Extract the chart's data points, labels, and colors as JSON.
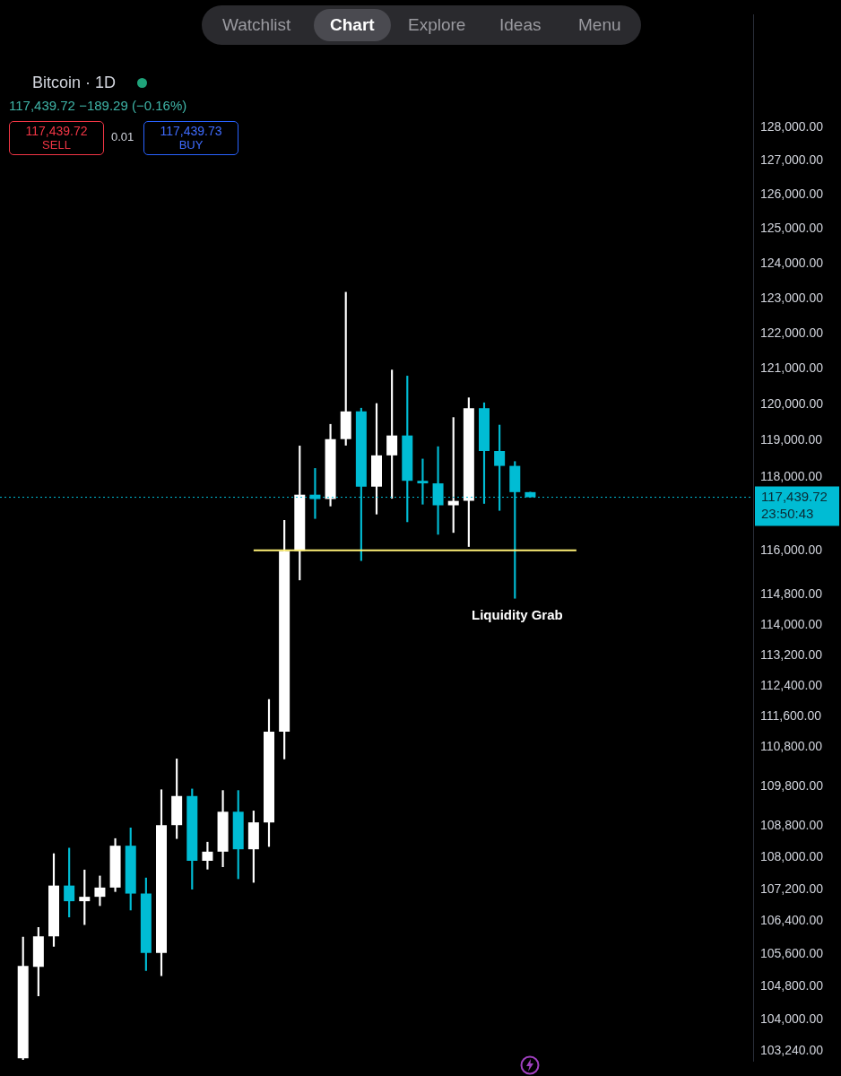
{
  "chart_data": {
    "type": "candlestick",
    "title": "Bitcoin · 1D",
    "subtitle": "117,439.72 −189.29 (−0.16%)",
    "categories": [
      null,
      null,
      null,
      null,
      null,
      null,
      null,
      null,
      null,
      null,
      null,
      null,
      null,
      null,
      null,
      null,
      null,
      null,
      null,
      null,
      null,
      null,
      null,
      null,
      null,
      null,
      null,
      null,
      null,
      null,
      null,
      null,
      null,
      null,
      null,
      null,
      null,
      null,
      null,
      null,
      null,
      null,
      null,
      null,
      null,
      null,
      null,
      null,
      null
    ],
    "ohlc": [
      null,
      [
        103060,
        106010,
        103030,
        105300
      ],
      [
        105280,
        106250,
        104570,
        106030
      ],
      [
        106030,
        108090,
        105780,
        107290
      ],
      [
        107290,
        108230,
        106510,
        106900
      ],
      [
        106900,
        107680,
        106320,
        107010
      ],
      [
        107010,
        107530,
        106790,
        107240
      ],
      [
        107240,
        108470,
        107140,
        108290
      ],
      [
        108290,
        108740,
        106680,
        107090
      ],
      [
        107090,
        107480,
        105190,
        105620
      ],
      [
        105620,
        109710,
        105060,
        108810
      ],
      [
        108810,
        110500,
        108470,
        109550
      ],
      [
        109550,
        109730,
        107200,
        107910
      ],
      [
        107910,
        108380,
        107700,
        108140
      ],
      [
        108140,
        109690,
        107760,
        109150
      ],
      [
        109150,
        109690,
        107460,
        108200
      ],
      [
        108200,
        109170,
        107370,
        108880
      ],
      [
        108880,
        112040,
        108270,
        111200
      ],
      [
        111200,
        116810,
        110500,
        115980
      ],
      [
        115980,
        118850,
        115200,
        117510
      ],
      [
        117510,
        118230,
        116860,
        117390
      ],
      [
        117390,
        119450,
        117200,
        119040
      ],
      [
        119040,
        123180,
        118870,
        119810
      ],
      [
        119810,
        119900,
        115720,
        117730
      ],
      [
        117730,
        120030,
        116980,
        118590
      ],
      [
        118590,
        120970,
        117410,
        119140
      ],
      [
        119140,
        120800,
        116770,
        117890
      ],
      [
        117890,
        118490,
        117250,
        117820
      ],
      [
        117820,
        118830,
        116430,
        117220
      ],
      [
        117220,
        119640,
        116480,
        117340
      ],
      [
        117340,
        120190,
        116100,
        119900
      ],
      [
        119900,
        120050,
        117270,
        118710
      ],
      [
        118710,
        119430,
        117080,
        118300
      ],
      [
        118300,
        118420,
        114710,
        117580
      ],
      [
        117580,
        117580,
        117439.72,
        117439.72
      ],
      null,
      null,
      null,
      null,
      null,
      null,
      null,
      null,
      null,
      null,
      null,
      null,
      null,
      null
    ],
    "colors": [
      null,
      "#ffffff",
      "#ffffff",
      "#ffffff",
      "#00bcd4",
      "#ffffff",
      "#ffffff",
      "#ffffff",
      "#00bcd4",
      "#00bcd4",
      "#ffffff",
      "#ffffff",
      "#00bcd4",
      "#ffffff",
      "#ffffff",
      "#00bcd4",
      "#ffffff",
      "#ffffff",
      "#ffffff",
      "#ffffff",
      "#00bcd4",
      "#ffffff",
      "#ffffff",
      "#00bcd4",
      "#ffffff",
      "#ffffff",
      "#00bcd4",
      "#00bcd4",
      "#00bcd4",
      "#ffffff",
      "#ffffff",
      "#00bcd4",
      "#00bcd4",
      "#00bcd4",
      "#00bcd4",
      null,
      null,
      null,
      null,
      null,
      null,
      null,
      null,
      null,
      null,
      null,
      null,
      null,
      null
    ],
    "series": [
      {
        "type": "line",
        "color": "#fff176",
        "values": [
          null,
          null,
          null,
          null,
          null,
          null,
          null,
          null,
          null,
          null,
          null,
          null,
          null,
          null,
          null,
          null,
          116000,
          116000,
          116000,
          116000,
          116000,
          116000,
          116000,
          116000,
          116000,
          116000,
          116000,
          116000,
          116000,
          116000,
          116000,
          116000,
          116000,
          116000,
          116000,
          116000,
          116000,
          116000,
          null,
          null,
          null,
          null,
          null,
          null,
          null,
          null,
          null,
          null,
          null
        ]
      }
    ],
    "log": true,
    "ylim": [
      102990,
      131400
    ],
    "yticks": [
      {
        "value": 103240,
        "label": "103,240.00"
      },
      {
        "value": 104000,
        "label": "104,000.00"
      },
      {
        "value": 104800,
        "label": "104,800.00"
      },
      {
        "value": 105600,
        "label": "105,600.00"
      },
      {
        "value": 106400,
        "label": "106,400.00"
      },
      {
        "value": 107200,
        "label": "107,200.00"
      },
      {
        "value": 108000,
        "label": "108,000.00"
      },
      {
        "value": 108800,
        "label": "108,800.00"
      },
      {
        "value": 109800,
        "label": "109,800.00"
      },
      {
        "value": 110800,
        "label": "110,800.00"
      },
      {
        "value": 111600,
        "label": "111,600.00"
      },
      {
        "value": 112400,
        "label": "112,400.00"
      },
      {
        "value": 113200,
        "label": "113,200.00"
      },
      {
        "value": 114000,
        "label": "114,000.00"
      },
      {
        "value": 114800,
        "label": "114,800.00"
      },
      {
        "value": 116000,
        "label": "116,000.00"
      },
      {
        "value": 118000,
        "label": "118,000.00"
      },
      {
        "value": 119000,
        "label": "119,000.00"
      },
      {
        "value": 120000,
        "label": "120,000.00"
      },
      {
        "value": 121000,
        "label": "121,000.00"
      },
      {
        "value": 122000,
        "label": "122,000.00"
      },
      {
        "value": 123000,
        "label": "123,000.00"
      },
      {
        "value": 124000,
        "label": "124,000.00"
      },
      {
        "value": 125000,
        "label": "125,000.00"
      },
      {
        "value": 126000,
        "label": "126,000.00"
      },
      {
        "value": 127000,
        "label": "127,000.00"
      },
      {
        "value": 128000,
        "label": "128,000.00"
      }
    ],
    "tick_labels": "y",
    "ref_lines": [
      {
        "axis": "y",
        "value": 117439.72,
        "label": "117,439.72",
        "color": "#00bcd4",
        "line_style": "dotted"
      }
    ],
    "annotations": [
      "Watchlist",
      "Chart",
      "Explore",
      "Ideas",
      "Menu",
      "117,439.72",
      "SELL",
      "0.01",
      "117,439.73",
      "BUY",
      "23:50:43",
      "Liquidity Grab"
    ]
  }
}
